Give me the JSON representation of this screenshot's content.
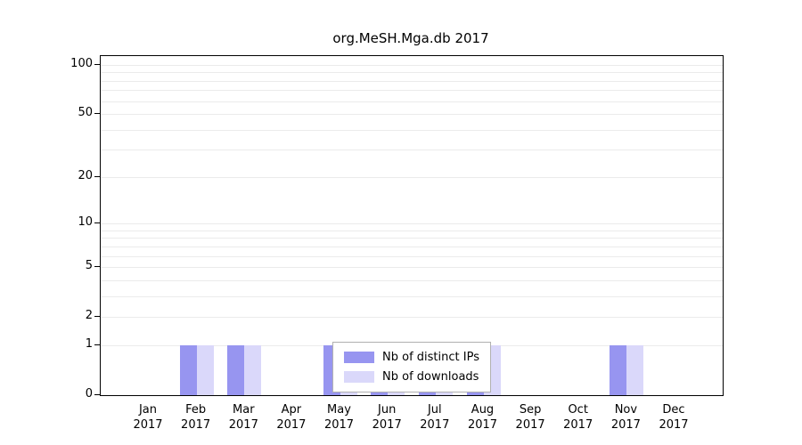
{
  "chart_data": {
    "type": "bar",
    "title": "org.MeSH.Mga.db 2017",
    "categories": [
      "Jan",
      "Feb",
      "Mar",
      "Apr",
      "May",
      "Jun",
      "Jul",
      "Aug",
      "Sep",
      "Oct",
      "Nov",
      "Dec"
    ],
    "year": "2017",
    "series": [
      {
        "name": "Nb of distinct IPs",
        "color": "#9795f0",
        "values": [
          0,
          1,
          1,
          0,
          1,
          1,
          1,
          1,
          0,
          0,
          1,
          0
        ]
      },
      {
        "name": "Nb of downloads",
        "color": "#dad8fa",
        "values": [
          0,
          1,
          1,
          0,
          1,
          1,
          1,
          1,
          0,
          0,
          1,
          0
        ]
      }
    ],
    "yscale": "log1p",
    "ylim": [
      0,
      113
    ],
    "yticks": [
      0,
      1,
      2,
      5,
      10,
      20,
      50,
      100
    ],
    "gridlines": [
      1,
      2,
      3,
      4,
      5,
      6,
      7,
      8,
      9,
      10,
      20,
      30,
      40,
      50,
      60,
      70,
      80,
      90,
      100
    ],
    "grid": true,
    "legend_position": "bottom-center"
  }
}
